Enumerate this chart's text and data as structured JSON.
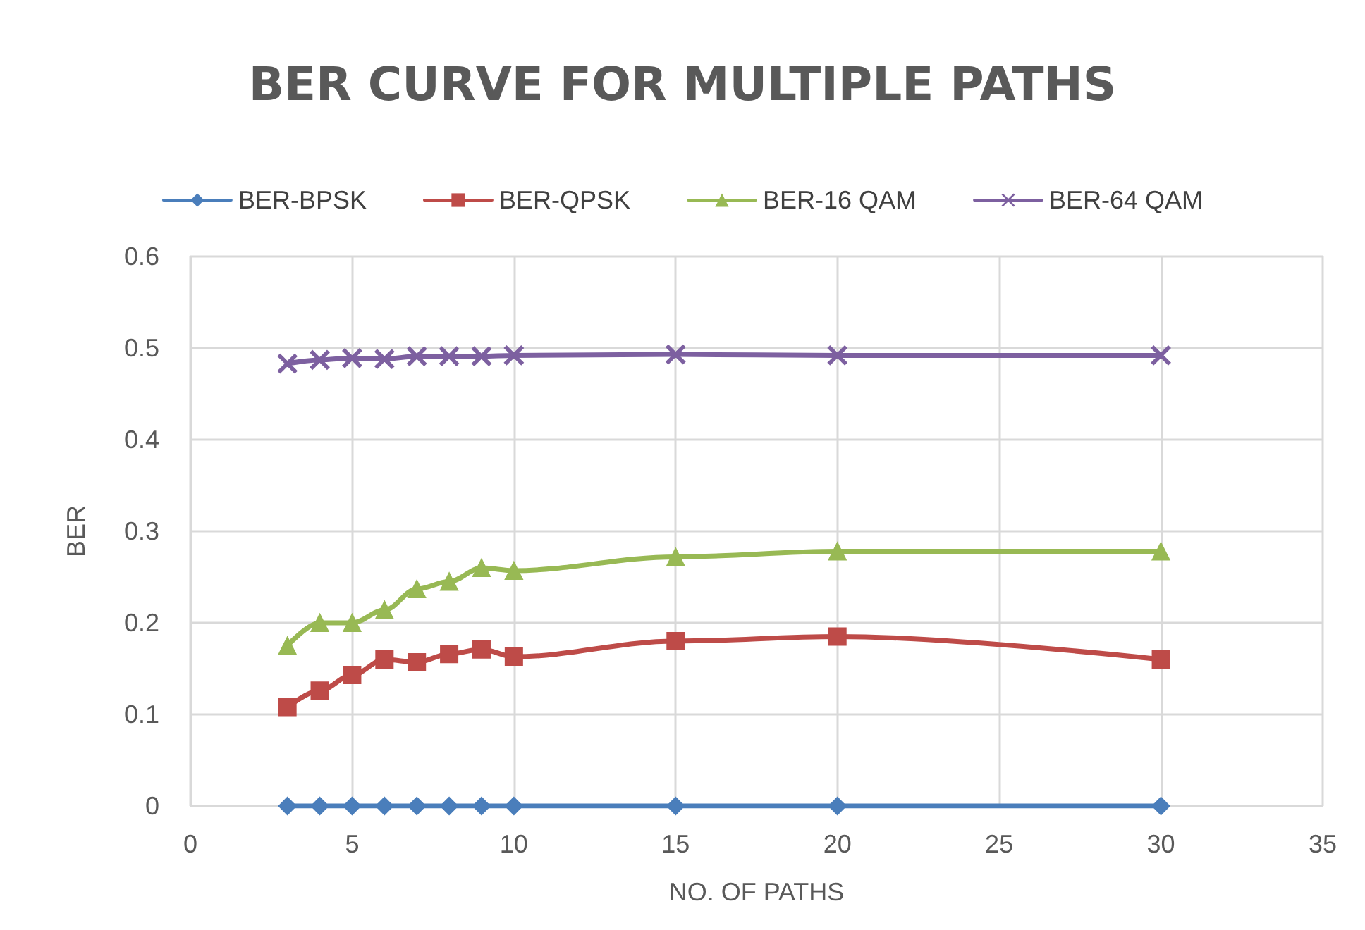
{
  "chart_data": {
    "type": "line",
    "title": "BER CURVE FOR MULTIPLE PATHS",
    "xlabel": "NO. OF PATHS",
    "ylabel": "BER",
    "x": [
      3,
      4,
      5,
      6,
      7,
      8,
      9,
      10,
      15,
      20,
      30
    ],
    "series": [
      {
        "name": "BER-BPSK",
        "color": "#4a7ebb",
        "marker": "diamond",
        "values": [
          0,
          0,
          0,
          0,
          0,
          0,
          0,
          0,
          0,
          0,
          0
        ]
      },
      {
        "name": "BER-QPSK",
        "color": "#be4b48",
        "marker": "square",
        "values": [
          0.108,
          0.126,
          0.143,
          0.16,
          0.157,
          0.166,
          0.171,
          0.163,
          0.18,
          0.185,
          0.16
        ]
      },
      {
        "name": "BER-16 QAM",
        "color": "#98b954",
        "marker": "triangle",
        "values": [
          0.175,
          0.2,
          0.2,
          0.214,
          0.237,
          0.245,
          0.26,
          0.257,
          0.272,
          0.278,
          0.278
        ]
      },
      {
        "name": "BER-64 QAM",
        "color": "#7d60a0",
        "marker": "cross",
        "values": [
          0.483,
          0.487,
          0.489,
          0.488,
          0.491,
          0.491,
          0.491,
          0.492,
          0.493,
          0.492,
          0.492
        ]
      }
    ],
    "xlim": [
      0,
      35
    ],
    "xticks": [
      0,
      5,
      10,
      15,
      20,
      25,
      30,
      35
    ],
    "ylim": [
      0,
      0.6
    ],
    "yticks": [
      0,
      0.1,
      0.2,
      0.3,
      0.4,
      0.5,
      0.6
    ],
    "grid": true,
    "legend": "top"
  }
}
